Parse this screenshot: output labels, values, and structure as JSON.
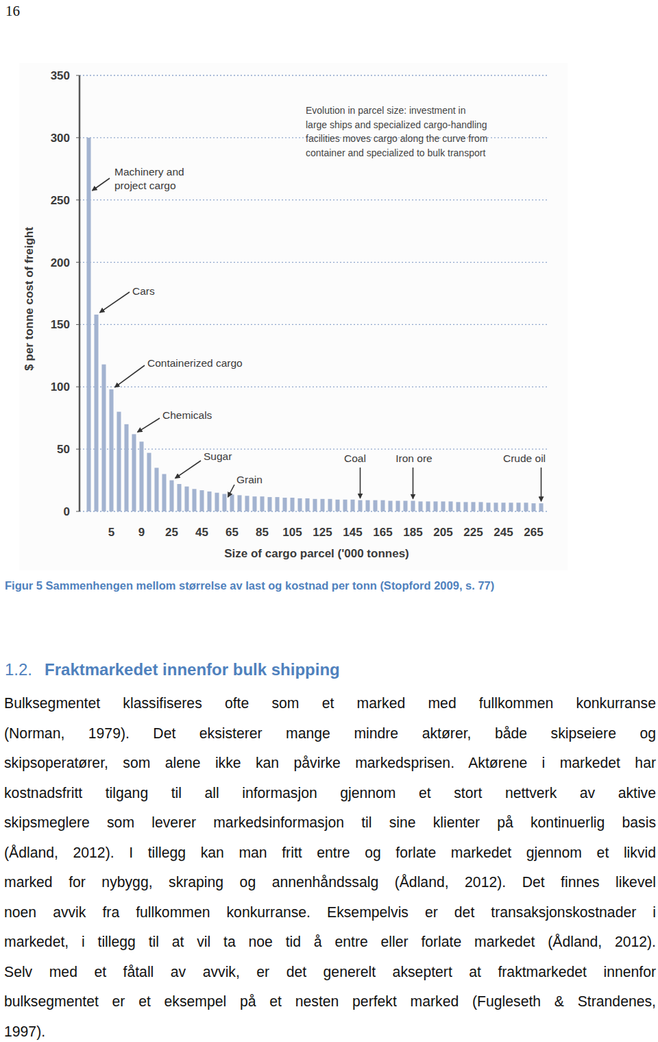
{
  "page_number": "16",
  "chart_data": {
    "type": "bar",
    "note": [
      "Evolution in parcel size: investment in",
      "large ships and specialized cargo-handling",
      "facilities moves cargo along the curve from",
      "container and specialized to bulk transport"
    ],
    "x_label": "Size of cargo parcel ('000 tonnes)",
    "y_label": "$ per tonne cost of freight",
    "categories": [
      null,
      null,
      null,
      "5",
      null,
      null,
      null,
      "9",
      null,
      null,
      null,
      "25",
      null,
      null,
      null,
      "45",
      null,
      null,
      null,
      "65",
      null,
      null,
      null,
      "85",
      null,
      null,
      null,
      "105",
      null,
      null,
      null,
      "125",
      null,
      null,
      null,
      "145",
      null,
      null,
      null,
      "165",
      null,
      null,
      null,
      "185",
      null,
      null,
      null,
      "205",
      null,
      null,
      null,
      "225",
      null,
      null,
      null,
      "245",
      null,
      null,
      null,
      "265",
      null
    ],
    "values": [
      300,
      158,
      118,
      98,
      80,
      70,
      62,
      56,
      47,
      35,
      30,
      25,
      22,
      20,
      18,
      17,
      16,
      15,
      14,
      13.5,
      13,
      12.5,
      12,
      12,
      11.5,
      11.5,
      11,
      11,
      10.5,
      10.5,
      10,
      10,
      10,
      9.5,
      9.5,
      9.5,
      9,
      9,
      9,
      9,
      8.5,
      8.5,
      8.5,
      8.5,
      8,
      8,
      8,
      8,
      8,
      7.5,
      7.5,
      7.5,
      7.5,
      7,
      7,
      7,
      7,
      7,
      7,
      6.5,
      6.5
    ],
    "color": "#a3b3d0",
    "ylim": [
      0,
      350
    ],
    "yticks": [
      0,
      50,
      100,
      150,
      200,
      250,
      300,
      350
    ],
    "grid": true,
    "annotations": [
      {
        "text": [
          "Machinery and",
          "project cargo"
        ],
        "index": 0
      },
      {
        "text": [
          "Cars"
        ],
        "index": 1
      },
      {
        "text": [
          "Containerized cargo"
        ],
        "index": 3
      },
      {
        "text": [
          "Chemicals"
        ],
        "index": 6
      },
      {
        "text": [
          "Sugar"
        ],
        "index": 11
      },
      {
        "text": [
          "Grain"
        ],
        "index": 18
      },
      {
        "text": [
          "Coal"
        ],
        "index": 36
      },
      {
        "text": [
          "Iron ore"
        ],
        "index": 43
      },
      {
        "text": [
          "Crude oil"
        ],
        "index": 60
      }
    ]
  },
  "caption": "Figur 5 Sammenhengen mellom størrelse av last og kostnad per tonn (Stopford 2009, s. 77)",
  "heading": {
    "number": "1.2.",
    "text": "Fraktmarkedet innenfor bulk shipping"
  },
  "paragraph": [
    "Bulksegmentet klassifiseres ofte som et marked med fullkommen konkurranse",
    "(Norman, 1979).  Det eksisterer mange mindre aktører, både skipseiere og",
    "skipsoperatører, som alene ikke kan påvirke markedsprisen. Aktørene i markedet har",
    "kostnadsfritt tilgang til all informasjon gjennom et stort nettverk av aktive",
    "skipsmeglere som leverer markedsinformasjon til sine klienter på kontinuerlig basis",
    "(Ådland, 2012). I tillegg kan man fritt entre og forlate markedet gjennom et likvid",
    "marked for nybygg, skraping og annenhåndssalg (Ådland, 2012). Det finnes likevel",
    "noen avvik fra fullkommen konkurranse. Eksempelvis er det transaksjonskostnader i",
    "markedet, i tillegg til at vil ta noe tid å entre eller forlate markedet (Ådland, 2012).",
    "Selv med et fåtall av avvik, er det generelt akseptert at fraktmarkedet innenfor",
    "bulksegmentet er et eksempel på et nesten perfekt marked (Fugleseth & Strandenes,",
    "1997)."
  ]
}
